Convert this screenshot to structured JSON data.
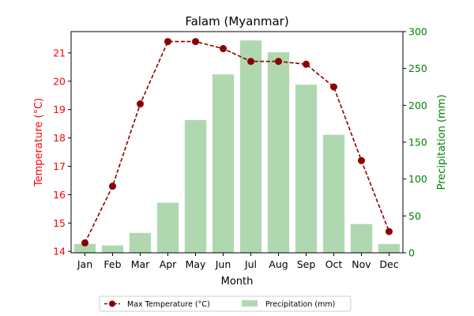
{
  "chart_data": {
    "type": "bar+line",
    "title": "Falam (Myanmar)",
    "xlabel": "Month",
    "categories": [
      "Jan",
      "Feb",
      "Mar",
      "Apr",
      "May",
      "Jun",
      "Jul",
      "Aug",
      "Sep",
      "Oct",
      "Nov",
      "Dec"
    ],
    "left_axis": {
      "label": "Temperature (°C)",
      "color": "#ff0000",
      "ylim": [
        13.95,
        21.75
      ],
      "ticks": [
        14,
        15,
        16,
        17,
        18,
        19,
        20,
        21
      ]
    },
    "right_axis": {
      "label": "Precipitation (mm)",
      "color": "#008000",
      "ylim": [
        0,
        300
      ],
      "ticks": [
        0,
        50,
        100,
        150,
        200,
        250,
        300
      ]
    },
    "series": [
      {
        "name": "Max Temperature (°C)",
        "kind": "line",
        "axis": "left",
        "color": "#8b0000",
        "values": [
          14.3,
          16.3,
          19.2,
          21.4,
          21.4,
          21.15,
          20.7,
          20.7,
          20.6,
          19.8,
          17.2,
          14.7
        ]
      },
      {
        "name": "Precipitation (mm)",
        "kind": "bar",
        "axis": "right",
        "color": "#b0d8b0",
        "values": [
          12,
          10,
          27,
          68,
          180,
          242,
          288,
          272,
          228,
          160,
          39,
          12
        ]
      }
    ],
    "legend_position": "bottom-center"
  }
}
